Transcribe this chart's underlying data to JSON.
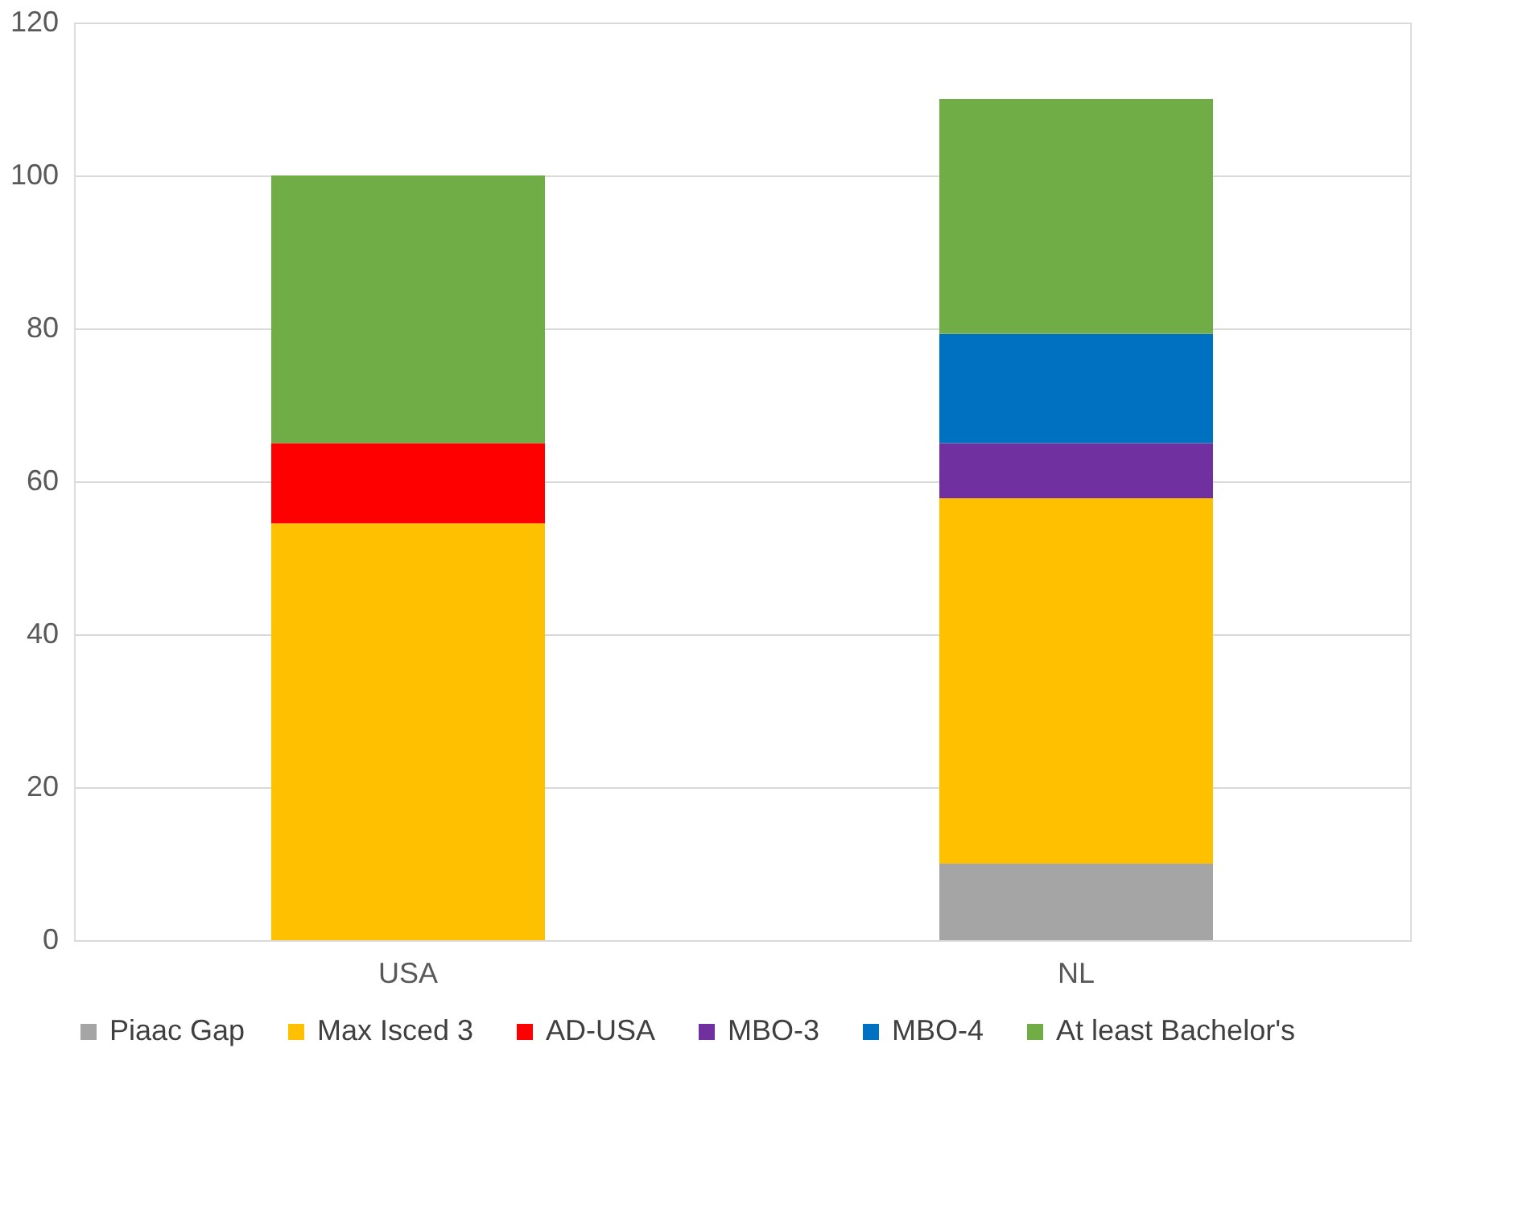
{
  "chart_data": {
    "type": "bar",
    "stacked": true,
    "categories": [
      "USA",
      "NL"
    ],
    "series": [
      {
        "name": "Piaac Gap",
        "color": "#a5a5a5",
        "values": [
          null,
          10
        ]
      },
      {
        "name": "Max Isced 3",
        "color": "#ffc000",
        "values": [
          54.5,
          47.8
        ]
      },
      {
        "name": "AD-USA",
        "color": "#ff0000",
        "values": [
          10.5,
          null
        ]
      },
      {
        "name": "MBO-3",
        "color": "#7030a0",
        "values": [
          null,
          7.2
        ]
      },
      {
        "name": "MBO-4",
        "color": "#0070c0",
        "values": [
          null,
          14.3
        ]
      },
      {
        "name": "At least Bachelor's",
        "color": "#70ad47",
        "values": [
          35,
          30.7
        ]
      }
    ],
    "ylim": [
      0,
      120
    ],
    "yticks": [
      0,
      20,
      40,
      60,
      80,
      100,
      120
    ],
    "grid": "y",
    "legend": "bottom"
  }
}
